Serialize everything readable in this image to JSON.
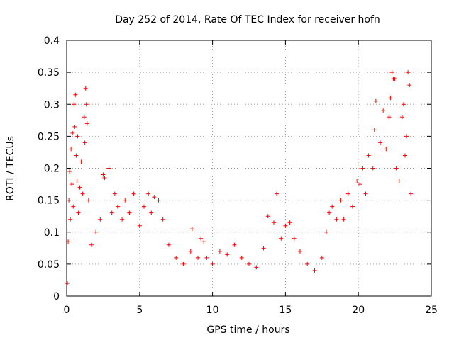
{
  "chart_data": {
    "type": "scatter",
    "title": "Day 252 of 2014, Rate Of TEC Index for receiver hofn",
    "xlabel": "GPS time / hours",
    "ylabel": "ROTI / TECUs",
    "xlim": [
      0,
      25
    ],
    "ylim": [
      0,
      0.4
    ],
    "x_ticks": [
      "0",
      "5",
      "10",
      "15",
      "20",
      "25"
    ],
    "y_ticks": [
      "0",
      "0.05",
      "0.1",
      "0.15",
      "0.2",
      "0.25",
      "0.3",
      "0.35",
      "0.4"
    ],
    "grid": true,
    "marker": "+",
    "color": "#ff0000",
    "series": [
      {
        "points": [
          [
            0.05,
            0.02
          ],
          [
            0.1,
            0.085
          ],
          [
            0.15,
            0.15
          ],
          [
            0.2,
            0.195
          ],
          [
            0.25,
            0.12
          ],
          [
            0.3,
            0.23
          ],
          [
            0.35,
            0.175
          ],
          [
            0.4,
            0.255
          ],
          [
            0.45,
            0.14
          ],
          [
            0.5,
            0.3
          ],
          [
            0.55,
            0.265
          ],
          [
            0.6,
            0.315
          ],
          [
            0.65,
            0.22
          ],
          [
            0.7,
            0.18
          ],
          [
            0.75,
            0.25
          ],
          [
            0.8,
            0.13
          ],
          [
            0.9,
            0.17
          ],
          [
            1.0,
            0.21
          ],
          [
            1.1,
            0.16
          ],
          [
            1.2,
            0.28
          ],
          [
            1.25,
            0.24
          ],
          [
            1.3,
            0.325
          ],
          [
            1.35,
            0.3
          ],
          [
            1.4,
            0.27
          ],
          [
            1.5,
            0.15
          ],
          [
            1.7,
            0.08
          ],
          [
            2.0,
            0.1
          ],
          [
            2.3,
            0.12
          ],
          [
            2.5,
            0.19
          ],
          [
            2.6,
            0.185
          ],
          [
            2.9,
            0.2
          ],
          [
            3.1,
            0.13
          ],
          [
            3.3,
            0.16
          ],
          [
            3.5,
            0.14
          ],
          [
            3.8,
            0.12
          ],
          [
            4.0,
            0.15
          ],
          [
            4.3,
            0.13
          ],
          [
            4.6,
            0.16
          ],
          [
            5.0,
            0.11
          ],
          [
            5.3,
            0.14
          ],
          [
            5.6,
            0.16
          ],
          [
            5.8,
            0.13
          ],
          [
            6.0,
            0.155
          ],
          [
            6.3,
            0.15
          ],
          [
            6.6,
            0.12
          ],
          [
            7.0,
            0.08
          ],
          [
            7.5,
            0.06
          ],
          [
            8.0,
            0.05
          ],
          [
            8.5,
            0.07
          ],
          [
            8.6,
            0.105
          ],
          [
            9.0,
            0.06
          ],
          [
            9.2,
            0.09
          ],
          [
            9.4,
            0.085
          ],
          [
            9.6,
            0.06
          ],
          [
            10.0,
            0.05
          ],
          [
            10.5,
            0.07
          ],
          [
            11.0,
            0.065
          ],
          [
            11.5,
            0.08
          ],
          [
            12.0,
            0.06
          ],
          [
            12.5,
            0.05
          ],
          [
            13.0,
            0.045
          ],
          [
            13.5,
            0.075
          ],
          [
            13.8,
            0.125
          ],
          [
            14.2,
            0.115
          ],
          [
            14.4,
            0.16
          ],
          [
            14.7,
            0.09
          ],
          [
            15.0,
            0.11
          ],
          [
            15.3,
            0.115
          ],
          [
            15.6,
            0.09
          ],
          [
            16.0,
            0.07
          ],
          [
            16.5,
            0.05
          ],
          [
            17.0,
            0.04
          ],
          [
            17.5,
            0.06
          ],
          [
            17.8,
            0.1
          ],
          [
            18.0,
            0.13
          ],
          [
            18.2,
            0.14
          ],
          [
            18.5,
            0.12
          ],
          [
            18.8,
            0.15
          ],
          [
            19.0,
            0.12
          ],
          [
            19.3,
            0.16
          ],
          [
            19.6,
            0.14
          ],
          [
            19.9,
            0.18
          ],
          [
            20.1,
            0.175
          ],
          [
            20.3,
            0.2
          ],
          [
            20.5,
            0.16
          ],
          [
            20.7,
            0.22
          ],
          [
            21.0,
            0.2
          ],
          [
            21.1,
            0.26
          ],
          [
            21.2,
            0.305
          ],
          [
            21.5,
            0.24
          ],
          [
            21.7,
            0.29
          ],
          [
            21.9,
            0.23
          ],
          [
            22.1,
            0.28
          ],
          [
            22.2,
            0.31
          ],
          [
            22.3,
            0.35
          ],
          [
            22.4,
            0.34
          ],
          [
            22.5,
            0.34
          ],
          [
            22.6,
            0.2
          ],
          [
            22.8,
            0.18
          ],
          [
            23.0,
            0.28
          ],
          [
            23.1,
            0.3
          ],
          [
            23.2,
            0.22
          ],
          [
            23.3,
            0.25
          ],
          [
            23.4,
            0.35
          ],
          [
            23.5,
            0.33
          ],
          [
            23.6,
            0.16
          ]
        ]
      }
    ]
  }
}
